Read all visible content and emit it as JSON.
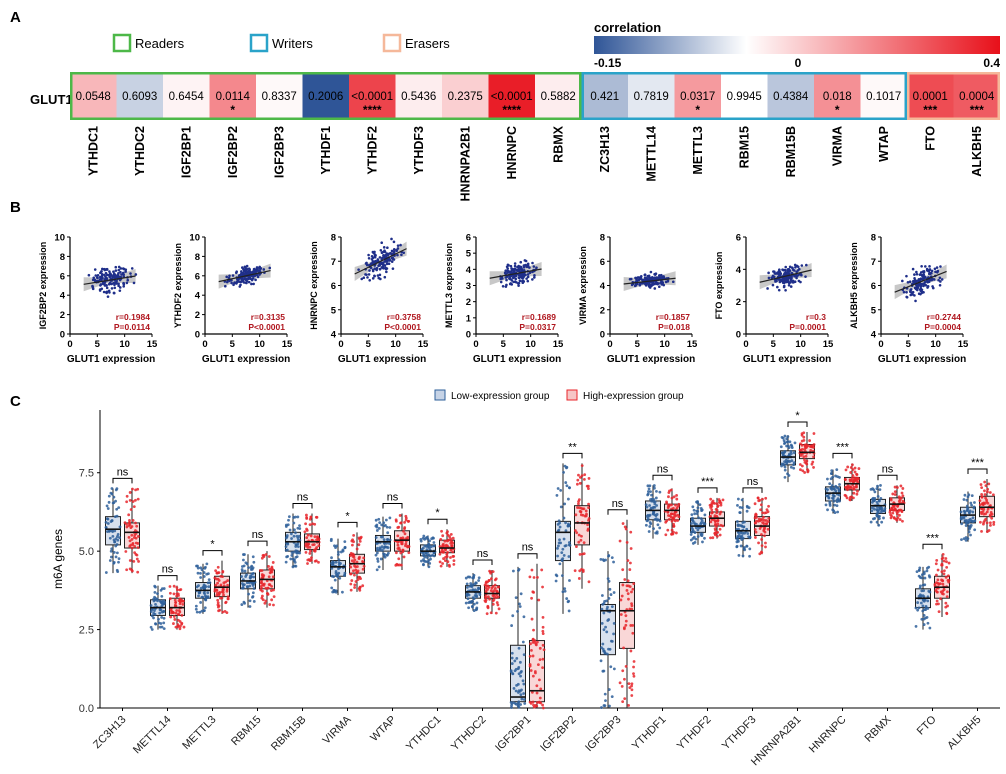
{
  "panels": {
    "a": "A",
    "b": "B",
    "c": "C"
  },
  "panelA": {
    "row_label": "GLUT1",
    "legend": {
      "readers": "Readers",
      "writers": "Writers",
      "erasers": "Erasers"
    },
    "group_colors": {
      "Readers": "#4db848",
      "Writers": "#2aa3c9",
      "Erasers": "#f5b89a"
    },
    "colorbar": {
      "title": "correlation",
      "min_label": "-0.15",
      "mid_label": "0",
      "max_label": "0.4",
      "min": -0.15,
      "max": 0.4,
      "low_color": "#2f5597",
      "mid_color": "#ffffff",
      "high_color": "#e8101a"
    },
    "cells": [
      {
        "gene": "YTHDC1",
        "group": "Readers",
        "r": 0.12,
        "p": "0.0548",
        "sig": ""
      },
      {
        "gene": "YTHDC2",
        "group": "Readers",
        "r": -0.04,
        "p": "0.6093",
        "sig": ""
      },
      {
        "gene": "IGF2BP1",
        "group": "Readers",
        "r": 0.02,
        "p": "0.6454",
        "sig": ""
      },
      {
        "gene": "IGF2BP2",
        "group": "Readers",
        "r": 0.1984,
        "p": "0.0114",
        "sig": "*"
      },
      {
        "gene": "IGF2BP3",
        "group": "Readers",
        "r": 0.01,
        "p": "0.8337",
        "sig": ""
      },
      {
        "gene": "YTHDF1",
        "group": "Readers",
        "r": -0.15,
        "p": "0.2006",
        "sig": ""
      },
      {
        "gene": "YTHDF2",
        "group": "Readers",
        "r": 0.3135,
        "p": "<0.0001",
        "sig": "****"
      },
      {
        "gene": "YTHDF3",
        "group": "Readers",
        "r": 0.03,
        "p": "0.5436",
        "sig": ""
      },
      {
        "gene": "HNRNPA2B1",
        "group": "Readers",
        "r": 0.08,
        "p": "0.2375",
        "sig": ""
      },
      {
        "gene": "HNRNPC",
        "group": "Readers",
        "r": 0.3758,
        "p": "<0.0001",
        "sig": "****"
      },
      {
        "gene": "RBMX",
        "group": "Readers",
        "r": 0.03,
        "p": "0.5882",
        "sig": ""
      },
      {
        "gene": "ZC3H13",
        "group": "Writers",
        "r": -0.06,
        "p": "0.421",
        "sig": ""
      },
      {
        "gene": "METTL14",
        "group": "Writers",
        "r": -0.02,
        "p": "0.7819",
        "sig": ""
      },
      {
        "gene": "METTL3",
        "group": "Writers",
        "r": 0.1689,
        "p": "0.0317",
        "sig": "*"
      },
      {
        "gene": "RBM15",
        "group": "Writers",
        "r": 0.0,
        "p": "0.9945",
        "sig": ""
      },
      {
        "gene": "RBM15B",
        "group": "Writers",
        "r": -0.05,
        "p": "0.4384",
        "sig": ""
      },
      {
        "gene": "VIRMA",
        "group": "Writers",
        "r": 0.1857,
        "p": "0.018",
        "sig": "*"
      },
      {
        "gene": "WTAP",
        "group": "Writers",
        "r": 0.01,
        "p": "0.1017",
        "sig": ""
      },
      {
        "gene": "FTO",
        "group": "Erasers",
        "r": 0.3,
        "p": "0.0001",
        "sig": "***"
      },
      {
        "gene": "ALKBH5",
        "group": "Erasers",
        "r": 0.2744,
        "p": "0.0004",
        "sig": "***"
      }
    ]
  },
  "panelB": {
    "xlabel": "GLUT1 expression",
    "xlim": [
      0,
      15
    ],
    "xticks": [
      "0",
      "5",
      "10",
      "15"
    ],
    "plots": [
      {
        "gene": "IGF2BP2",
        "ylabel": "IGF2BP2 expression",
        "ylim": [
          0,
          10
        ],
        "yticks": [
          "0",
          "2",
          "4",
          "6",
          "8",
          "10"
        ],
        "intercept": 4.9,
        "slope": 0.09,
        "spread": 0.8,
        "r_label": "r=0.1984",
        "p_label": "P=0.0114"
      },
      {
        "gene": "YTHDF2",
        "ylabel": "YTHDF2 expression",
        "ylim": [
          0,
          10
        ],
        "yticks": [
          "0",
          "2",
          "4",
          "6",
          "8",
          "10"
        ],
        "intercept": 5.1,
        "slope": 0.12,
        "spread": 0.6,
        "r_label": "r=0.3135",
        "p_label": "P<0.0001"
      },
      {
        "gene": "HNRNPC",
        "ylabel": "HNRNPC expression",
        "ylim": [
          4,
          8
        ],
        "yticks": [
          "4",
          "5",
          "6",
          "7",
          "8"
        ],
        "intercept": 6.2,
        "slope": 0.11,
        "spread": 0.45,
        "r_label": "r=0.3758",
        "p_label": "P<0.0001"
      },
      {
        "gene": "METTL3",
        "ylabel": "METTL3 expression",
        "ylim": [
          0,
          6
        ],
        "yticks": [
          "0",
          "1",
          "2",
          "3",
          "4",
          "5",
          "6"
        ],
        "intercept": 3.3,
        "slope": 0.06,
        "spread": 0.5,
        "r_label": "r=0.1689",
        "p_label": "P=0.0317"
      },
      {
        "gene": "VIRMA",
        "ylabel": "VIRMA expression",
        "ylim": [
          0,
          8
        ],
        "yticks": [
          "0",
          "2",
          "4",
          "6",
          "8"
        ],
        "intercept": 4.0,
        "slope": 0.05,
        "spread": 0.4,
        "r_label": "r=0.1857",
        "p_label": "P=0.018"
      },
      {
        "gene": "FTO",
        "ylabel": "FTO expression",
        "ylim": [
          0,
          6
        ],
        "yticks": [
          "0",
          "2",
          "4",
          "6"
        ],
        "intercept": 3.0,
        "slope": 0.08,
        "spread": 0.45,
        "r_label": "r=0.3",
        "p_label": "P=0.0001"
      },
      {
        "gene": "ALKBH5",
        "ylabel": "ALKBH5 expression",
        "ylim": [
          4,
          8
        ],
        "yticks": [
          "4",
          "5",
          "6",
          "7",
          "8"
        ],
        "intercept": 5.5,
        "slope": 0.09,
        "spread": 0.4,
        "r_label": "r=0.2744",
        "p_label": "P=0.0004"
      }
    ]
  },
  "chart_data": {
    "type": "box",
    "ylabel": "m6A genes",
    "ylim": [
      0,
      9.5
    ],
    "yticks": [
      "0.0",
      "2.5",
      "5.0",
      "7.5"
    ],
    "legend": {
      "low": "Low-expression group",
      "high": "High-expression group"
    },
    "colors": {
      "low": "#2e5f9a",
      "high": "#e8262b",
      "low_fill": "#c6d3e6",
      "high_fill": "#f6c6c6"
    },
    "categories": [
      "ZC3H13",
      "METTL14",
      "METTL3",
      "RBM15",
      "RBM15B",
      "VIRMA",
      "WTAP",
      "YTHDC1",
      "YTHDC2",
      "IGF2BP1",
      "IGF2BP2",
      "IGF2BP3",
      "YTHDF1",
      "YTHDF2",
      "YTHDF3",
      "HNRNPA2B1",
      "HNRNPC",
      "RBMX",
      "FTO",
      "ALKBH5"
    ],
    "significance": [
      "ns",
      "ns",
      "*",
      "ns",
      "ns",
      "*",
      "ns",
      "*",
      "ns",
      "ns",
      "**",
      "ns",
      "ns",
      "***",
      "ns",
      "*",
      "***",
      "ns",
      "***",
      "***"
    ],
    "low": [
      [
        4.3,
        5.2,
        5.7,
        6.1,
        7.0
      ],
      [
        2.5,
        2.95,
        3.2,
        3.45,
        3.9
      ],
      [
        3.0,
        3.5,
        3.75,
        4.0,
        4.6
      ],
      [
        3.2,
        3.8,
        4.05,
        4.3,
        4.9
      ],
      [
        4.5,
        5.0,
        5.3,
        5.6,
        6.2
      ],
      [
        3.6,
        4.2,
        4.5,
        4.7,
        5.4
      ],
      [
        4.4,
        5.0,
        5.3,
        5.5,
        6.1
      ],
      [
        4.5,
        4.85,
        5.0,
        5.2,
        5.5
      ],
      [
        3.1,
        3.5,
        3.7,
        3.9,
        4.3
      ],
      [
        0.0,
        0.2,
        0.35,
        2.0,
        4.5
      ],
      [
        3.0,
        4.7,
        5.6,
        5.95,
        7.8
      ],
      [
        0.0,
        1.7,
        3.1,
        3.3,
        5.0
      ],
      [
        5.4,
        6.0,
        6.3,
        6.6,
        7.1
      ],
      [
        5.2,
        5.6,
        5.8,
        6.05,
        6.6
      ],
      [
        4.8,
        5.4,
        5.65,
        5.95,
        6.7
      ],
      [
        7.2,
        7.75,
        8.0,
        8.2,
        8.7
      ],
      [
        6.2,
        6.6,
        6.85,
        7.05,
        7.6
      ],
      [
        5.8,
        6.2,
        6.45,
        6.65,
        7.1
      ],
      [
        2.5,
        3.2,
        3.5,
        3.8,
        4.5
      ],
      [
        5.3,
        5.9,
        6.15,
        6.4,
        6.9
      ]
    ],
    "high": [
      [
        4.3,
        5.1,
        5.6,
        5.9,
        7.0
      ],
      [
        2.5,
        2.95,
        3.2,
        3.5,
        3.9
      ],
      [
        3.0,
        3.55,
        3.85,
        4.2,
        4.7
      ],
      [
        3.2,
        3.8,
        4.1,
        4.4,
        5.0
      ],
      [
        4.6,
        5.05,
        5.3,
        5.55,
        6.2
      ],
      [
        3.7,
        4.3,
        4.6,
        4.9,
        5.6
      ],
      [
        4.4,
        5.0,
        5.35,
        5.65,
        6.2
      ],
      [
        4.5,
        4.95,
        5.1,
        5.35,
        5.7
      ],
      [
        3.0,
        3.5,
        3.65,
        3.9,
        4.4
      ],
      [
        0.0,
        0.2,
        0.55,
        2.15,
        4.6
      ],
      [
        3.8,
        5.2,
        5.9,
        6.45,
        7.8
      ],
      [
        0.0,
        1.9,
        3.1,
        4.0,
        6.0
      ],
      [
        5.5,
        6.0,
        6.3,
        6.5,
        7.0
      ],
      [
        5.4,
        5.8,
        6.05,
        6.25,
        6.7
      ],
      [
        4.9,
        5.5,
        5.8,
        6.1,
        6.7
      ],
      [
        7.5,
        7.95,
        8.15,
        8.4,
        8.8
      ],
      [
        6.6,
        6.95,
        7.15,
        7.35,
        7.8
      ],
      [
        5.9,
        6.3,
        6.5,
        6.7,
        7.1
      ],
      [
        2.9,
        3.5,
        3.85,
        4.2,
        4.9
      ],
      [
        5.6,
        6.1,
        6.4,
        6.75,
        7.3
      ]
    ]
  }
}
